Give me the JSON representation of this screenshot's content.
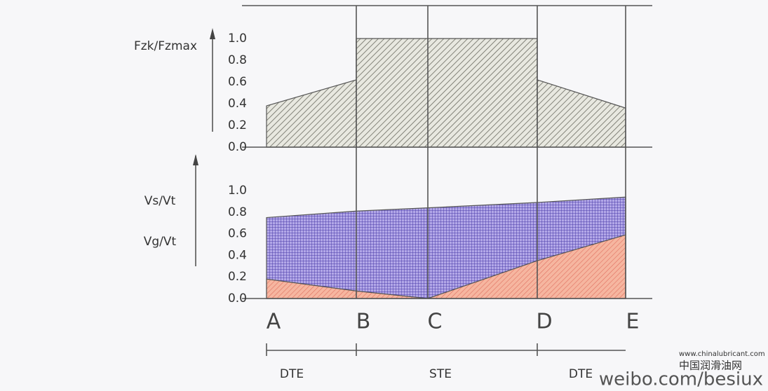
{
  "chart_data": [
    {
      "type": "area",
      "ylabel": "Fzk/Fzmax",
      "ylim": [
        0,
        1
      ],
      "yticks": [
        {
          "value": 0,
          "label": "0.0"
        },
        {
          "value": 0.2,
          "label": "0.2"
        },
        {
          "value": 0.4,
          "label": "0.4"
        },
        {
          "value": 0.6,
          "label": "0.6"
        },
        {
          "value": 0.8,
          "label": "0.8"
        },
        {
          "value": 1,
          "label": "1.0"
        }
      ],
      "series": [
        {
          "color": "#8a8a80",
          "values": [
            0.38,
            0.62,
            null,
            null,
            null
          ]
        },
        {
          "color": "#8a8a80",
          "values": [
            null,
            1.0,
            1.0,
            1.0,
            null
          ]
        },
        {
          "color": "#8a8a80",
          "values": [
            null,
            null,
            null,
            0.62,
            0.36
          ]
        }
      ]
    },
    {
      "type": "area",
      "ylabels": [
        "Vs/Vt",
        "Vg/Vt"
      ],
      "ylim": [
        0,
        1
      ],
      "yticks": [
        {
          "value": 0,
          "label": "0.0"
        },
        {
          "value": 0.2,
          "label": "0.2"
        },
        {
          "value": 0.4,
          "label": "0.4"
        },
        {
          "value": 0.6,
          "label": "0.6"
        },
        {
          "value": 0.8,
          "label": "0.8"
        },
        {
          "value": 1,
          "label": "1.0"
        }
      ],
      "categories": [
        "A",
        "B",
        "C",
        "D",
        "E"
      ],
      "series": [
        {
          "name": "Vs/Vt",
          "color": "#7a6ccc",
          "values": [
            0.75,
            0.81,
            0.84,
            0.89,
            0.94
          ]
        },
        {
          "name": "Vg/Vt",
          "color": "#f0a48c",
          "values": [
            0.18,
            0.07,
            0.0,
            0.35,
            0.59
          ]
        }
      ],
      "regions": [
        "DTE",
        "STE",
        "DTE"
      ]
    }
  ],
  "watermark": {
    "site": "www.chinalubricant.com",
    "name": "中国润滑油网",
    "weibo": "weibo.com/besiux"
  }
}
